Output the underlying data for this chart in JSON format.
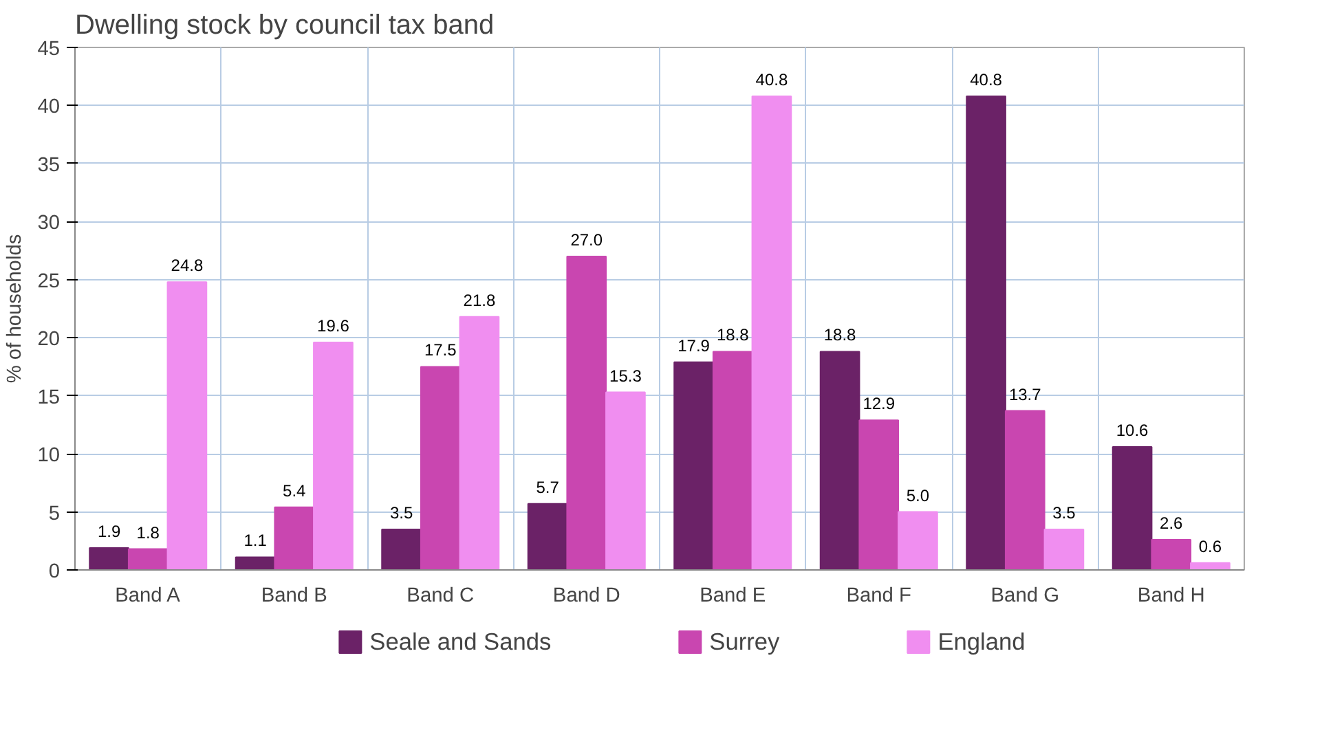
{
  "chart_data": {
    "type": "bar",
    "title": "Dwelling stock by council tax band",
    "ylabel": "% of households",
    "categories": [
      "Band A",
      "Band B",
      "Band C",
      "Band D",
      "Band E",
      "Band F",
      "Band G",
      "Band H"
    ],
    "series": [
      {
        "name": "Seale and Sands",
        "color": "#6b2267",
        "values": [
          1.9,
          1.1,
          3.5,
          5.7,
          17.9,
          18.8,
          40.8,
          10.6
        ],
        "value_labels": [
          "1.9",
          "1.1",
          "3.5",
          "5.7",
          "17.9",
          "18.8",
          "40.8",
          "10.6"
        ]
      },
      {
        "name": "Surrey",
        "color": "#c946b0",
        "values": [
          1.8,
          5.4,
          17.5,
          27.0,
          18.8,
          12.9,
          13.7,
          2.6
        ],
        "value_labels": [
          "1.8",
          "5.4",
          "17.5",
          "27.0",
          "18.8",
          "12.9",
          "13.7",
          "2.6"
        ]
      },
      {
        "name": "England",
        "color": "#f08ef0",
        "values": [
          24.8,
          19.6,
          21.8,
          15.3,
          40.8,
          5.0,
          3.5,
          0.6
        ],
        "value_labels": [
          "24.8",
          "19.6",
          "21.8",
          "15.3",
          "40.8",
          "5.0",
          "3.5",
          "0.6"
        ]
      }
    ],
    "ylim": [
      0,
      45
    ],
    "yticks": [
      0,
      5,
      10,
      15,
      20,
      25,
      30,
      35,
      40,
      45
    ],
    "grid": true,
    "legend": "bottom"
  }
}
